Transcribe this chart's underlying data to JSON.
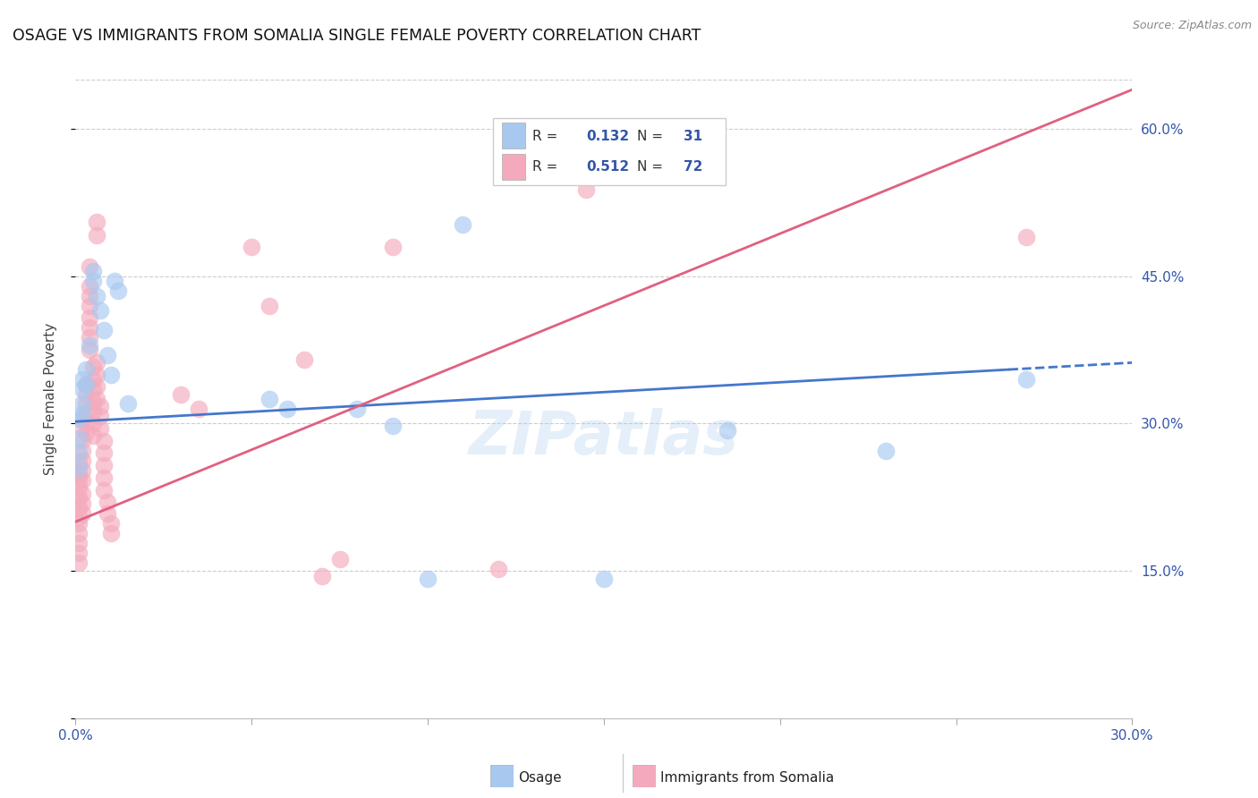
{
  "title": "OSAGE VS IMMIGRANTS FROM SOMALIA SINGLE FEMALE POVERTY CORRELATION CHART",
  "source": "Source: ZipAtlas.com",
  "ylabel": "Single Female Poverty",
  "xlim": [
    0.0,
    0.3
  ],
  "ylim": [
    0.0,
    0.65
  ],
  "blue_color": "#A8C8F0",
  "pink_color": "#F4AABC",
  "line_blue": "#4477CC",
  "line_pink": "#E06080",
  "watermark": "ZIPatlas",
  "blue_scatter": [
    [
      0.001,
      0.305
    ],
    [
      0.001,
      0.285
    ],
    [
      0.001,
      0.27
    ],
    [
      0.001,
      0.255
    ],
    [
      0.002,
      0.345
    ],
    [
      0.002,
      0.32
    ],
    [
      0.002,
      0.335
    ],
    [
      0.002,
      0.31
    ],
    [
      0.003,
      0.355
    ],
    [
      0.003,
      0.34
    ],
    [
      0.004,
      0.38
    ],
    [
      0.005,
      0.455
    ],
    [
      0.005,
      0.445
    ],
    [
      0.006,
      0.43
    ],
    [
      0.007,
      0.415
    ],
    [
      0.008,
      0.395
    ],
    [
      0.009,
      0.37
    ],
    [
      0.01,
      0.35
    ],
    [
      0.011,
      0.445
    ],
    [
      0.012,
      0.435
    ],
    [
      0.015,
      0.32
    ],
    [
      0.055,
      0.325
    ],
    [
      0.06,
      0.315
    ],
    [
      0.08,
      0.315
    ],
    [
      0.09,
      0.298
    ],
    [
      0.1,
      0.142
    ],
    [
      0.11,
      0.503
    ],
    [
      0.15,
      0.142
    ],
    [
      0.185,
      0.293
    ],
    [
      0.23,
      0.272
    ],
    [
      0.27,
      0.345
    ]
  ],
  "pink_scatter": [
    [
      0.001,
      0.26
    ],
    [
      0.001,
      0.248
    ],
    [
      0.001,
      0.235
    ],
    [
      0.001,
      0.225
    ],
    [
      0.001,
      0.215
    ],
    [
      0.001,
      0.205
    ],
    [
      0.001,
      0.198
    ],
    [
      0.001,
      0.188
    ],
    [
      0.001,
      0.178
    ],
    [
      0.001,
      0.168
    ],
    [
      0.001,
      0.158
    ],
    [
      0.001,
      0.242
    ],
    [
      0.002,
      0.305
    ],
    [
      0.002,
      0.295
    ],
    [
      0.002,
      0.283
    ],
    [
      0.002,
      0.272
    ],
    [
      0.002,
      0.262
    ],
    [
      0.002,
      0.252
    ],
    [
      0.002,
      0.242
    ],
    [
      0.002,
      0.228
    ],
    [
      0.002,
      0.218
    ],
    [
      0.002,
      0.208
    ],
    [
      0.003,
      0.34
    ],
    [
      0.003,
      0.33
    ],
    [
      0.003,
      0.32
    ],
    [
      0.003,
      0.31
    ],
    [
      0.003,
      0.3
    ],
    [
      0.003,
      0.29
    ],
    [
      0.004,
      0.46
    ],
    [
      0.004,
      0.44
    ],
    [
      0.004,
      0.43
    ],
    [
      0.004,
      0.42
    ],
    [
      0.004,
      0.408
    ],
    [
      0.004,
      0.398
    ],
    [
      0.004,
      0.388
    ],
    [
      0.004,
      0.375
    ],
    [
      0.005,
      0.358
    ],
    [
      0.005,
      0.345
    ],
    [
      0.005,
      0.335
    ],
    [
      0.005,
      0.322
    ],
    [
      0.005,
      0.312
    ],
    [
      0.005,
      0.3
    ],
    [
      0.005,
      0.288
    ],
    [
      0.006,
      0.505
    ],
    [
      0.006,
      0.492
    ],
    [
      0.006,
      0.362
    ],
    [
      0.006,
      0.35
    ],
    [
      0.006,
      0.338
    ],
    [
      0.006,
      0.325
    ],
    [
      0.007,
      0.318
    ],
    [
      0.007,
      0.308
    ],
    [
      0.007,
      0.295
    ],
    [
      0.008,
      0.282
    ],
    [
      0.008,
      0.27
    ],
    [
      0.008,
      0.258
    ],
    [
      0.008,
      0.245
    ],
    [
      0.008,
      0.232
    ],
    [
      0.009,
      0.22
    ],
    [
      0.009,
      0.208
    ],
    [
      0.01,
      0.198
    ],
    [
      0.01,
      0.188
    ],
    [
      0.03,
      0.33
    ],
    [
      0.035,
      0.315
    ],
    [
      0.05,
      0.48
    ],
    [
      0.055,
      0.42
    ],
    [
      0.065,
      0.365
    ],
    [
      0.07,
      0.145
    ],
    [
      0.075,
      0.162
    ],
    [
      0.09,
      0.48
    ],
    [
      0.12,
      0.152
    ],
    [
      0.145,
      0.538
    ],
    [
      0.27,
      0.49
    ]
  ],
  "blue_line": [
    [
      0.0,
      0.302
    ],
    [
      0.265,
      0.355
    ]
  ],
  "blue_dashed_line": [
    [
      0.265,
      0.355
    ],
    [
      0.3,
      0.362
    ]
  ],
  "pink_line": [
    [
      0.0,
      0.2
    ],
    [
      0.3,
      0.64
    ]
  ]
}
